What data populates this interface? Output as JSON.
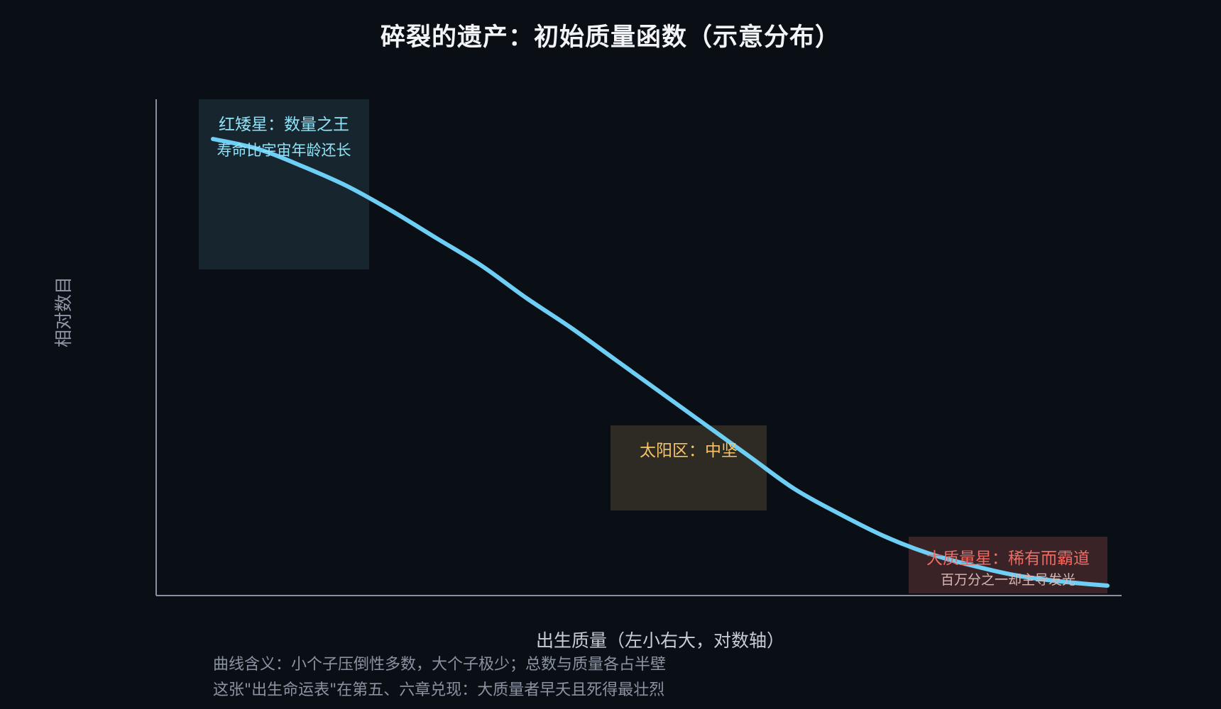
{
  "chart_data": {
    "type": "line",
    "title": "碎裂的遗产：初始质量函数（示意分布）",
    "xlabel": "出生质量（左小右大，对数轴）",
    "ylabel": "相对数目",
    "x_scale": "log",
    "grid": false,
    "legend": "none",
    "series": [
      {
        "x": [
          0.0,
          0.05,
          0.1,
          0.15,
          0.2,
          0.25,
          0.3,
          0.35,
          0.4,
          0.45,
          0.5,
          0.55,
          0.6,
          0.65,
          0.7,
          0.75,
          0.8,
          0.85,
          0.9,
          0.95,
          1.0
        ],
        "values": [
          0.92,
          0.9,
          0.865,
          0.825,
          0.775,
          0.72,
          0.665,
          0.6,
          0.54,
          0.475,
          0.41,
          0.345,
          0.28,
          0.215,
          0.165,
          0.12,
          0.085,
          0.06,
          0.04,
          0.028,
          0.02
        ],
        "color": "#6ecff6"
      }
    ],
    "annotations": [
      {
        "id": "low",
        "title": "红矮星：数量之王",
        "subtitle": "寿命比宇宙年龄还长",
        "color": "#8fe3f7",
        "fill": "#17252f"
      },
      {
        "id": "sun",
        "title": "太阳区：中坚",
        "subtitle": "",
        "color": "#f3c46a",
        "fill": "#2e2b24"
      },
      {
        "id": "high",
        "title": "大质量星：稀有而霸道",
        "subtitle": "百万分之一却主导发光",
        "color": "#ee6a63",
        "fill": "#3a2326"
      }
    ]
  },
  "notes": [
    "曲线含义：小个子压倒性多数，大个子极少；总数与质量各占半壁",
    "这张\"出生命运表\"在第五、六章兑现：大质量者早夭且死得最壮烈"
  ],
  "colors": {
    "background": "#0a0f16",
    "axis": "#8a90a0",
    "curve": "#6ecff6"
  }
}
